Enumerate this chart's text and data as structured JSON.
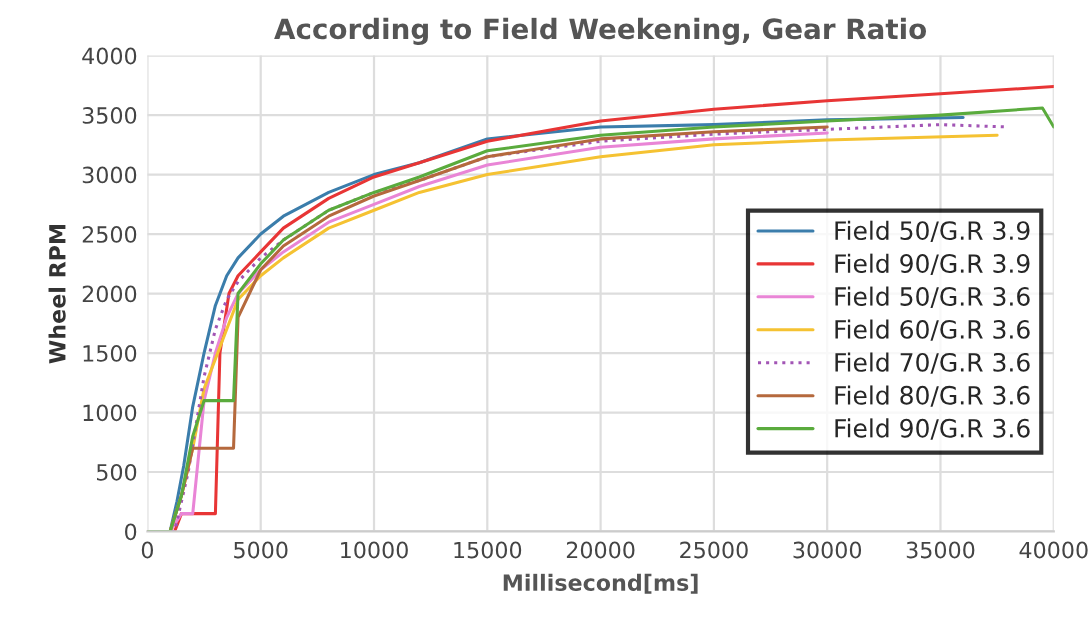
{
  "chart_data": {
    "type": "line",
    "title": "According to Field Weekening, Gear Ratio",
    "xlabel": "Millisecond[ms]",
    "ylabel": "Wheel RPM",
    "xlim": [
      0,
      40000
    ],
    "ylim": [
      0,
      4000
    ],
    "xticks": [
      0,
      5000,
      10000,
      15000,
      20000,
      25000,
      30000,
      35000,
      40000
    ],
    "yticks": [
      0,
      500,
      1000,
      1500,
      2000,
      2500,
      3000,
      3500,
      4000
    ],
    "grid": true,
    "legend": "right",
    "series": [
      {
        "name": "Field 50/G.R 3.9",
        "color": "#3b7dab",
        "x": [
          0,
          1000,
          1300,
          1600,
          2000,
          2500,
          3000,
          3500,
          4000,
          5000,
          6000,
          8000,
          10000,
          12000,
          15000,
          20000,
          25000,
          30000,
          36000
        ],
        "values": [
          0,
          0,
          250,
          550,
          1050,
          1500,
          1900,
          2150,
          2300,
          2500,
          2650,
          2850,
          3000,
          3100,
          3300,
          3400,
          3420,
          3460,
          3480
        ]
      },
      {
        "name": "Field 90/G.R 3.9",
        "color": "#e83535",
        "x": [
          0,
          1200,
          1500,
          3000,
          3200,
          3600,
          4000,
          5000,
          6000,
          8000,
          10000,
          12000,
          15000,
          20000,
          25000,
          30000,
          35000,
          40000
        ],
        "values": [
          0,
          0,
          150,
          150,
          1500,
          2000,
          2150,
          2350,
          2550,
          2800,
          2980,
          3100,
          3280,
          3450,
          3550,
          3620,
          3680,
          3740
        ]
      },
      {
        "name": "Field 50/G.R 3.6",
        "color": "#e985d6",
        "x": [
          0,
          1000,
          1500,
          2000,
          2500,
          3000,
          3500,
          4000,
          5000,
          6000,
          8000,
          10000,
          12000,
          15000,
          20000,
          25000,
          30000
        ],
        "values": [
          0,
          0,
          150,
          150,
          1100,
          1500,
          1800,
          2000,
          2200,
          2350,
          2600,
          2750,
          2900,
          3080,
          3230,
          3300,
          3350
        ]
      },
      {
        "name": "Field 60/G.R 3.6",
        "color": "#f5c232",
        "x": [
          0,
          1000,
          1500,
          2000,
          2500,
          3000,
          3500,
          4000,
          5000,
          6000,
          8000,
          10000,
          12000,
          15000,
          20000,
          25000,
          30000,
          37500
        ],
        "values": [
          0,
          0,
          300,
          700,
          1200,
          1450,
          1700,
          1950,
          2150,
          2300,
          2550,
          2700,
          2850,
          3000,
          3150,
          3250,
          3290,
          3330
        ]
      },
      {
        "name": "Field 70/G.R 3.6",
        "color": "#a255b5",
        "line_style": "dotted",
        "x": [
          0,
          1200,
          1800,
          2500,
          3000,
          3500,
          4000,
          5000,
          6000,
          8000,
          10000,
          12000,
          15000,
          20000,
          25000,
          30000,
          35000,
          38000
        ],
        "values": [
          0,
          0,
          500,
          1300,
          1700,
          1950,
          2100,
          2300,
          2450,
          2700,
          2850,
          2950,
          3150,
          3280,
          3340,
          3380,
          3420,
          3400
        ]
      },
      {
        "name": "Field 80/G.R 3.6",
        "color": "#b5693d",
        "x": [
          0,
          1000,
          1500,
          2000,
          3800,
          4000,
          5000,
          6000,
          8000,
          10000,
          12000,
          15000,
          20000,
          25000,
          30000
        ],
        "values": [
          0,
          0,
          300,
          700,
          700,
          1800,
          2200,
          2400,
          2650,
          2820,
          2950,
          3150,
          3300,
          3360,
          3400
        ]
      },
      {
        "name": "Field 90/G.R 3.6",
        "color": "#5aab3d",
        "x": [
          0,
          1000,
          1500,
          2000,
          2500,
          3000,
          3800,
          4000,
          5000,
          6000,
          8000,
          10000,
          12000,
          15000,
          20000,
          25000,
          30000,
          35000,
          39500,
          40000
        ],
        "values": [
          0,
          0,
          300,
          800,
          1100,
          1100,
          1100,
          2000,
          2250,
          2450,
          2700,
          2850,
          2980,
          3200,
          3330,
          3400,
          3450,
          3500,
          3560,
          3400
        ]
      }
    ]
  }
}
